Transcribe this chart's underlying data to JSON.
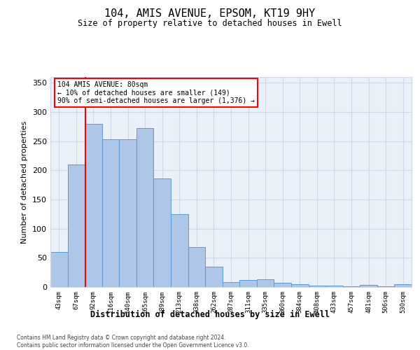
{
  "title": "104, AMIS AVENUE, EPSOM, KT19 9HY",
  "subtitle": "Size of property relative to detached houses in Ewell",
  "xlabel": "Distribution of detached houses by size in Ewell",
  "ylabel": "Number of detached properties",
  "footnote": "Contains HM Land Registry data © Crown copyright and database right 2024.\nContains public sector information licensed under the Open Government Licence v3.0.",
  "bar_labels": [
    "43sqm",
    "67sqm",
    "92sqm",
    "116sqm",
    "140sqm",
    "165sqm",
    "189sqm",
    "213sqm",
    "238sqm",
    "262sqm",
    "287sqm",
    "311sqm",
    "335sqm",
    "360sqm",
    "384sqm",
    "408sqm",
    "433sqm",
    "457sqm",
    "481sqm",
    "506sqm",
    "530sqm"
  ],
  "bar_values": [
    60,
    210,
    280,
    253,
    253,
    273,
    186,
    125,
    69,
    35,
    9,
    12,
    13,
    7,
    5,
    2,
    3,
    1,
    4,
    1,
    5
  ],
  "bar_color": "#aec6e8",
  "bar_edge_color": "#5b9bd5",
  "annotation_line_label": "104 AMIS AVENUE: 80sqm",
  "annotation_text_line2": "← 10% of detached houses are smaller (149)",
  "annotation_text_line3": "90% of semi-detached houses are larger (1,376) →",
  "ylim": [
    0,
    360
  ],
  "yticks": [
    0,
    50,
    100,
    150,
    200,
    250,
    300,
    350
  ],
  "grid_color": "#d0d8e8",
  "background_color": "#eaf0f8",
  "annotation_box_color": "white",
  "annotation_box_edge": "red",
  "vline_color": "red",
  "vline_x": 1.52
}
